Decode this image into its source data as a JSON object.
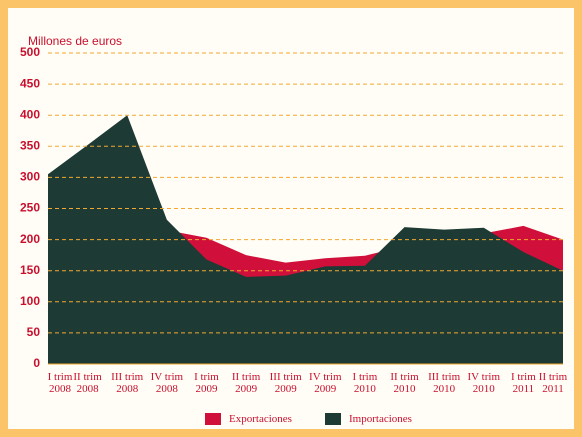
{
  "chart_data": {
    "type": "area",
    "axis_label": "Millones de euros",
    "categories": [
      "I trim 2008",
      "II trim 2008",
      "III trim 2008",
      "IV trim 2008",
      "I trim 2009",
      "II trim 2009",
      "III trim 2009",
      "IV trim 2009",
      "I trim 2010",
      "II trim 2010",
      "III trim 2010",
      "IV trim 2010",
      "I trim 2011",
      "II trim 2011"
    ],
    "series": [
      {
        "name": "Exportaciones",
        "color": "#d0103a",
        "values": [
          300,
          345,
          395,
          215,
          203,
          175,
          163,
          170,
          174,
          190,
          205,
          210,
          222,
          200
        ]
      },
      {
        "name": "Importaciones",
        "color": "#1d3a35",
        "values": [
          305,
          352,
          400,
          232,
          168,
          140,
          142,
          157,
          158,
          220,
          216,
          219,
          180,
          150
        ]
      }
    ],
    "ylim": [
      0,
      500
    ],
    "yticks": [
      0,
      50,
      100,
      150,
      200,
      250,
      300,
      350,
      400,
      450,
      500
    ],
    "grid": true
  }
}
